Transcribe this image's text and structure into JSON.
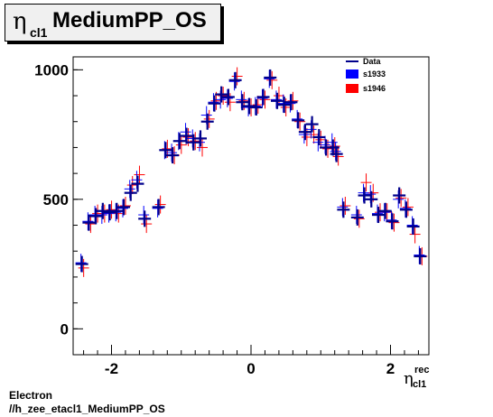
{
  "title": {
    "symbol": "η",
    "subscript": "cl1",
    "text": "MediumPP_OS"
  },
  "xlabel": {
    "symbol": "η",
    "superscript": "rec",
    "subscript": "cl1"
  },
  "footer": {
    "line1": "Electron",
    "line2": "//h_zee_etacl1_MediumPP_OS"
  },
  "colors": {
    "data": "#00008b",
    "s1933": "#0000ff",
    "s1946": "#ff0000"
  },
  "chart_data": {
    "type": "scatter",
    "xlim": [
      -2.55,
      2.55
    ],
    "ylim": [
      -100,
      1050
    ],
    "xticks": [
      {
        "v": -2,
        "label": "-2"
      },
      {
        "v": 0,
        "label": "0"
      },
      {
        "v": 2,
        "label": "2"
      }
    ],
    "yticks": [
      {
        "v": 0,
        "label": "0"
      },
      {
        "v": 500,
        "label": "500"
      },
      {
        "v": 1000,
        "label": "1000"
      }
    ],
    "legend_position": "top-right",
    "x": [
      -2.425,
      -2.325,
      -2.225,
      -2.125,
      -2.025,
      -1.925,
      -1.825,
      -1.725,
      -1.625,
      -1.525,
      -1.325,
      -1.225,
      -1.125,
      -1.025,
      -0.925,
      -0.825,
      -0.725,
      -0.625,
      -0.525,
      -0.425,
      -0.325,
      -0.225,
      -0.125,
      -0.025,
      0.075,
      0.175,
      0.275,
      0.375,
      0.475,
      0.575,
      0.675,
      0.775,
      0.875,
      0.975,
      1.075,
      1.175,
      1.225,
      1.325,
      1.525,
      1.625,
      1.725,
      1.825,
      1.925,
      2.025,
      2.125,
      2.225,
      2.325,
      2.425
    ],
    "series": [
      {
        "name": "Data",
        "style": "cross",
        "values": [
          250,
          410,
          435,
          455,
          450,
          455,
          470,
          525,
          560,
          425,
          470,
          690,
          670,
          725,
          745,
          720,
          735,
          800,
          870,
          905,
          895,
          960,
          875,
          860,
          855,
          895,
          970,
          880,
          865,
          875,
          805,
          760,
          790,
          740,
          700,
          700,
          675,
          460,
          430,
          515,
          500,
          440,
          455,
          415,
          515,
          460,
          395,
          280
        ]
      },
      {
        "name": "s1933",
        "style": "box",
        "values": [
          255,
          415,
          440,
          440,
          445,
          450,
          465,
          540,
          575,
          440,
          465,
          690,
          680,
          725,
          760,
          735,
          720,
          825,
          875,
          885,
          890,
          955,
          885,
          855,
          860,
          890,
          965,
          885,
          870,
          870,
          810,
          750,
          770,
          720,
          710,
          720,
          685,
          470,
          440,
          525,
          520,
          445,
          450,
          420,
          500,
          465,
          400,
          285
        ]
      },
      {
        "name": "s1946",
        "style": "box",
        "values": [
          235,
          405,
          445,
          445,
          460,
          445,
          475,
          555,
          595,
          405,
          480,
          695,
          670,
          710,
          740,
          725,
          700,
          810,
          880,
          900,
          875,
          975,
          880,
          855,
          865,
          885,
          960,
          900,
          855,
          880,
          800,
          740,
          750,
          730,
          695,
          705,
          665,
          475,
          425,
          565,
          525,
          450,
          450,
          410,
          505,
          470,
          365,
          280
        ]
      }
    ]
  }
}
